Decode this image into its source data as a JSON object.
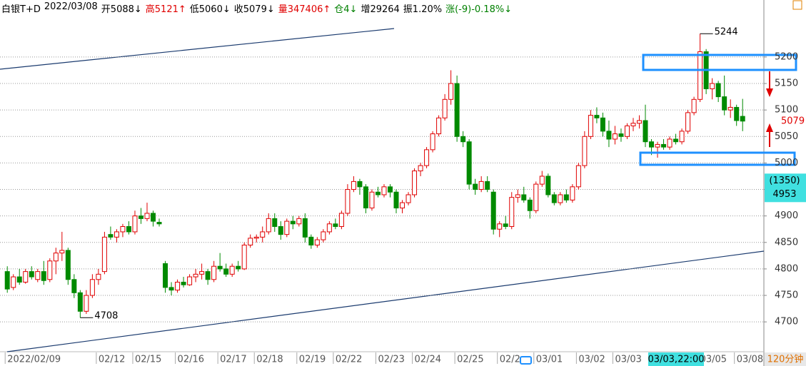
{
  "header": [
    {
      "text": "白银T+D",
      "color": "#000000"
    },
    {
      "text": "2022/03/08",
      "color": "#000000"
    },
    {
      "text": "开5088↓",
      "color": "#000000"
    },
    {
      "text": "高5121↑",
      "color": "#e00000"
    },
    {
      "text": "低5060↓",
      "color": "#000000"
    },
    {
      "text": "收5079↓",
      "color": "#000000"
    },
    {
      "text": "量347406↑",
      "color": "#e00000"
    },
    {
      "text": "仓4↓",
      "color": "#008000"
    },
    {
      "text": "增29264",
      "color": "#000000"
    },
    {
      "text": "振1.20%",
      "color": "#000000"
    },
    {
      "text": "涨(-9)-0.18%↓",
      "color": "#008000"
    }
  ],
  "chart_data": {
    "type": "candlestick",
    "up_color": "#e00000",
    "down_color": "#008a00",
    "xlim": [
      -1.2,
      124.5
    ],
    "ylim": [
      4645,
      5278
    ],
    "yticks": [
      4700,
      4750,
      4800,
      4850,
      4900,
      4950,
      5000,
      5050,
      5100,
      5150,
      5200
    ],
    "grid": true,
    "xticks": [
      {
        "value": 0,
        "label": "2022/02/09"
      },
      {
        "value": 15,
        "label": "02/12"
      },
      {
        "value": 21,
        "label": "02/15"
      },
      {
        "value": 28,
        "label": "02/16"
      },
      {
        "value": 35,
        "label": "02/17"
      },
      {
        "value": 41,
        "label": "02/18"
      },
      {
        "value": 48,
        "label": "02/19"
      },
      {
        "value": 54,
        "label": "02/22"
      },
      {
        "value": 61,
        "label": "02/23"
      },
      {
        "value": 67,
        "label": "02/24"
      },
      {
        "value": 74,
        "label": "02/25"
      },
      {
        "value": 81,
        "label": "02/2"
      },
      {
        "value": 87,
        "label": "03/01"
      },
      {
        "value": 94,
        "label": "03/02"
      },
      {
        "value": 100,
        "label": "03/03"
      },
      {
        "value": 114,
        "label": "03/05"
      },
      {
        "value": 120,
        "label": "03/08"
      }
    ],
    "open": [
      4795,
      4765,
      4785,
      4775,
      4795,
      4780,
      4795,
      4780,
      4815,
      4830,
      4835,
      4780,
      4755,
      4720,
      4750,
      4780,
      4795,
      4865,
      4860,
      4870,
      4880,
      4870,
      4900,
      4895,
      4905,
      4888,
      4810,
      4765,
      4760,
      4775,
      4770,
      4785,
      4790,
      4795,
      4780,
      4805,
      4800,
      4790,
      4805,
      4800,
      4845,
      4858,
      4860,
      4870,
      4895,
      4880,
      4865,
      4890,
      4885,
      4895,
      4860,
      4845,
      4855,
      4870,
      4885,
      4880,
      4905,
      4950,
      4965,
      4955,
      4915,
      4945,
      4940,
      4955,
      4945,
      4915,
      4925,
      4940,
      4985,
      4995,
      5025,
      5055,
      5085,
      5120,
      5150,
      5050,
      5040,
      4960,
      4950,
      4965,
      4945,
      4875,
      4885,
      4880,
      4935,
      4940,
      4930,
      4910,
      4960,
      4975,
      4940,
      4925,
      4940,
      4930,
      4955,
      4995,
      5050,
      5090,
      5085,
      5060,
      5045,
      5055,
      5050,
      5070,
      5075,
      5080,
      5040,
      5030,
      5035,
      5030,
      5045,
      5040,
      5060,
      5095,
      5120,
      5210,
      5140,
      5150,
      5125,
      5100,
      5105,
      5088
    ],
    "high": [
      4805,
      4790,
      4800,
      4800,
      4805,
      4800,
      4815,
      4820,
      4840,
      4870,
      4840,
      4790,
      4760,
      4760,
      4790,
      4800,
      4870,
      4880,
      4875,
      4885,
      4890,
      4910,
      4915,
      4925,
      4910,
      4895,
      4815,
      4775,
      4780,
      4785,
      4790,
      4800,
      4810,
      4800,
      4815,
      4830,
      4810,
      4810,
      4815,
      4850,
      4865,
      4865,
      4880,
      4905,
      4905,
      4890,
      4895,
      4900,
      4900,
      4905,
      4865,
      4860,
      4875,
      4890,
      4895,
      4910,
      4960,
      4975,
      4970,
      4960,
      4950,
      4955,
      4960,
      4960,
      4950,
      4930,
      4945,
      4990,
      5000,
      5030,
      5060,
      5090,
      5130,
      5175,
      5165,
      5060,
      5045,
      4970,
      4975,
      4975,
      4950,
      4890,
      4900,
      4945,
      4950,
      4955,
      4935,
      4965,
      4985,
      4980,
      4945,
      4945,
      4950,
      4960,
      5000,
      5060,
      5100,
      5105,
      5095,
      5080,
      5070,
      5065,
      5075,
      5085,
      5090,
      5110,
      5045,
      5040,
      5045,
      5050,
      5055,
      5065,
      5100,
      5125,
      5244,
      5215,
      5160,
      5155,
      5165,
      5120,
      5110,
      5121
    ],
    "low": [
      4755,
      4760,
      4770,
      4772,
      4780,
      4775,
      4770,
      4775,
      4790,
      4815,
      4770,
      4745,
      4708,
      4715,
      4745,
      4770,
      4790,
      4855,
      4850,
      4860,
      4865,
      4865,
      4885,
      4890,
      4880,
      4880,
      4755,
      4750,
      4755,
      4765,
      4768,
      4775,
      4780,
      4770,
      4775,
      4795,
      4785,
      4785,
      4795,
      4798,
      4840,
      4850,
      4850,
      4865,
      4870,
      4855,
      4860,
      4875,
      4880,
      4850,
      4838,
      4840,
      4850,
      4865,
      4875,
      4875,
      4900,
      4945,
      4940,
      4905,
      4910,
      4935,
      4935,
      4935,
      4905,
      4905,
      4920,
      4935,
      4975,
      4990,
      5020,
      5050,
      5080,
      5110,
      5040,
      5030,
      4950,
      4940,
      4945,
      4945,
      4865,
      4860,
      4875,
      4875,
      4925,
      4925,
      4895,
      4905,
      4955,
      4935,
      4920,
      4920,
      4925,
      4925,
      4950,
      4990,
      5045,
      5075,
      5050,
      5030,
      5035,
      5040,
      5045,
      5060,
      5065,
      5030,
      5015,
      5010,
      5025,
      5025,
      5035,
      5035,
      5055,
      5090,
      5115,
      5130,
      5120,
      5115,
      5090,
      5085,
      5070,
      5060
    ],
    "close": [
      4762,
      4785,
      4775,
      4795,
      4785,
      4795,
      4778,
      4815,
      4830,
      4835,
      4780,
      4755,
      4720,
      4750,
      4780,
      4790,
      4860,
      4860,
      4870,
      4880,
      4870,
      4900,
      4895,
      4905,
      4890,
      4885,
      4765,
      4760,
      4775,
      4770,
      4785,
      4790,
      4795,
      4780,
      4805,
      4800,
      4790,
      4805,
      4800,
      4845,
      4858,
      4860,
      4870,
      4895,
      4880,
      4865,
      4890,
      4885,
      4895,
      4860,
      4845,
      4855,
      4870,
      4885,
      4880,
      4905,
      4950,
      4965,
      4955,
      4915,
      4945,
      4940,
      4955,
      4945,
      4915,
      4925,
      4940,
      4985,
      4995,
      5025,
      5055,
      5085,
      5120,
      5150,
      5050,
      5040,
      4960,
      4950,
      4965,
      4950,
      4875,
      4885,
      4880,
      4935,
      4940,
      4930,
      4910,
      4960,
      4975,
      4940,
      4925,
      4940,
      4930,
      4955,
      4995,
      5050,
      5090,
      5085,
      5060,
      5045,
      5055,
      5050,
      5070,
      5075,
      5080,
      5040,
      5030,
      5035,
      5030,
      5045,
      5040,
      5060,
      5095,
      5120,
      5210,
      5140,
      5150,
      5125,
      5100,
      5105,
      5080,
      5079
    ],
    "max_label": 5244,
    "min_label": 4708,
    "last_label": 5079,
    "cursor": {
      "time": "03/03,22:00",
      "change": "(1350)",
      "price": 4953
    },
    "period": "120分钟"
  }
}
